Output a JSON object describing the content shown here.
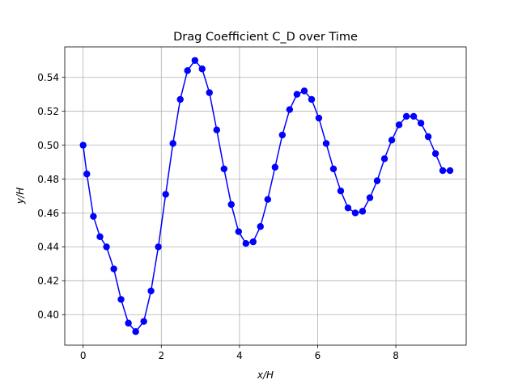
{
  "chart_data": {
    "type": "line",
    "title": "Drag Coefficient C_D over Time",
    "xlabel": "x/H",
    "ylabel": "y/H",
    "xlim": [
      -0.47,
      9.8
    ],
    "ylim": [
      0.382,
      0.558
    ],
    "xticks": [
      0,
      2,
      4,
      6,
      8
    ],
    "xtick_labels": [
      "0",
      "2",
      "4",
      "6",
      "8"
    ],
    "yticks": [
      0.4,
      0.42,
      0.44,
      0.46,
      0.48,
      0.5,
      0.52,
      0.54
    ],
    "ytick_labels": [
      "0.40",
      "0.42",
      "0.44",
      "0.46",
      "0.48",
      "0.50",
      "0.52",
      "0.54"
    ],
    "grid": true,
    "line_color": "#0000ff",
    "marker": "circle",
    "series": [
      {
        "x": [
          0.0,
          0.095,
          0.263,
          0.431,
          0.598,
          0.785,
          0.97,
          1.158,
          1.345,
          1.552,
          1.737,
          1.924,
          2.112,
          2.298,
          2.485,
          2.67,
          2.86,
          3.045,
          3.231,
          3.418,
          3.605,
          3.79,
          3.977,
          4.164,
          4.35,
          4.536,
          4.723,
          4.91,
          5.096,
          5.283,
          5.47,
          5.658,
          5.845,
          6.03,
          6.218,
          6.404,
          6.59,
          6.776,
          6.962,
          7.149,
          7.336,
          7.522,
          7.71,
          7.896,
          8.083,
          8.27,
          8.456,
          8.643,
          8.828,
          9.015,
          9.2,
          9.386
        ],
        "y": [
          0.5,
          0.483,
          0.458,
          0.446,
          0.44,
          0.427,
          0.409,
          0.395,
          0.39,
          0.396,
          0.414,
          0.44,
          0.471,
          0.501,
          0.527,
          0.544,
          0.55,
          0.545,
          0.531,
          0.509,
          0.486,
          0.465,
          0.449,
          0.442,
          0.443,
          0.452,
          0.468,
          0.487,
          0.506,
          0.521,
          0.53,
          0.532,
          0.527,
          0.516,
          0.501,
          0.486,
          0.473,
          0.463,
          0.46,
          0.461,
          0.469,
          0.479,
          0.492,
          0.503,
          0.512,
          0.517,
          0.517,
          0.513,
          0.505,
          0.495,
          0.485,
          0.485
        ]
      }
    ]
  }
}
